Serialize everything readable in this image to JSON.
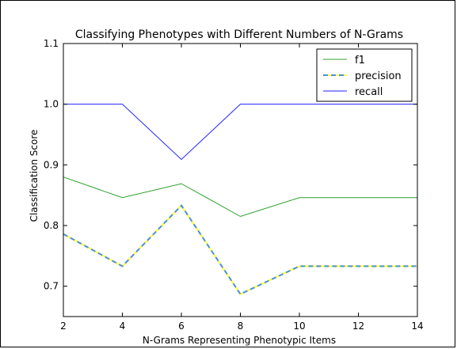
{
  "chart_data": {
    "type": "line",
    "title": "Classifying Phenotypes with Different Numbers of N-Grams",
    "xlabel": "N-Grams Representing Phenotypic Items",
    "ylabel": "Classification Score",
    "xlim": [
      2,
      14
    ],
    "ylim": [
      0.65,
      1.1
    ],
    "x_ticks": [
      "2",
      "4",
      "6",
      "8",
      "10",
      "12",
      "14"
    ],
    "y_ticks": [
      "0.7",
      "0.8",
      "0.9",
      "1.0",
      "1.1"
    ],
    "x": [
      2,
      4,
      6,
      8,
      10,
      14
    ],
    "legend_position": "top-right",
    "grid": false,
    "series": [
      {
        "name": "f1",
        "color": "#2ca02c",
        "style": "solid",
        "values": [
          0.88,
          0.846,
          0.869,
          0.815,
          0.846,
          0.846
        ]
      },
      {
        "name": "precision",
        "color": "#4a90d9",
        "dash_color": "#ffff33",
        "style": "dashed",
        "values": [
          0.786,
          0.733,
          0.833,
          0.687,
          0.733,
          0.733
        ]
      },
      {
        "name": "recall",
        "color": "#2222ff",
        "style": "solid",
        "values": [
          1.0,
          1.0,
          0.909,
          1.0,
          1.0,
          1.0
        ]
      }
    ]
  }
}
